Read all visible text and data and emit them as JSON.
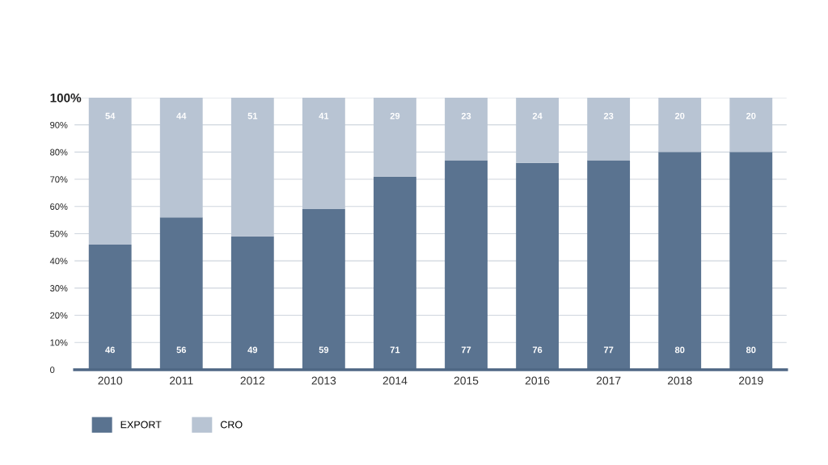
{
  "chart_data": {
    "type": "bar",
    "stacked": true,
    "categories": [
      "2010",
      "2011",
      "2012",
      "2013",
      "2014",
      "2015",
      "2016",
      "2017",
      "2018",
      "2019"
    ],
    "series": [
      {
        "name": "EXPORT",
        "color": "#5a7390",
        "values": [
          46,
          56,
          49,
          59,
          71,
          77,
          76,
          77,
          80,
          80
        ]
      },
      {
        "name": "CRO",
        "color": "#b8c4d3",
        "values": [
          54,
          44,
          51,
          41,
          29,
          23,
          24,
          23,
          20,
          20
        ]
      }
    ],
    "ylim": [
      0,
      100
    ],
    "yticks": [
      {
        "value": 0,
        "label": "0"
      },
      {
        "value": 10,
        "label": "10%"
      },
      {
        "value": 20,
        "label": "20%"
      },
      {
        "value": 30,
        "label": "30%"
      },
      {
        "value": 40,
        "label": "40%"
      },
      {
        "value": 50,
        "label": "50%"
      },
      {
        "value": 60,
        "label": "60%"
      },
      {
        "value": 70,
        "label": "70%"
      },
      {
        "value": 80,
        "label": "80%"
      },
      {
        "value": 90,
        "label": "90%"
      },
      {
        "value": 100,
        "label": "100%"
      }
    ],
    "grid": "y",
    "legend": "bottom left",
    "data_labels": true
  }
}
